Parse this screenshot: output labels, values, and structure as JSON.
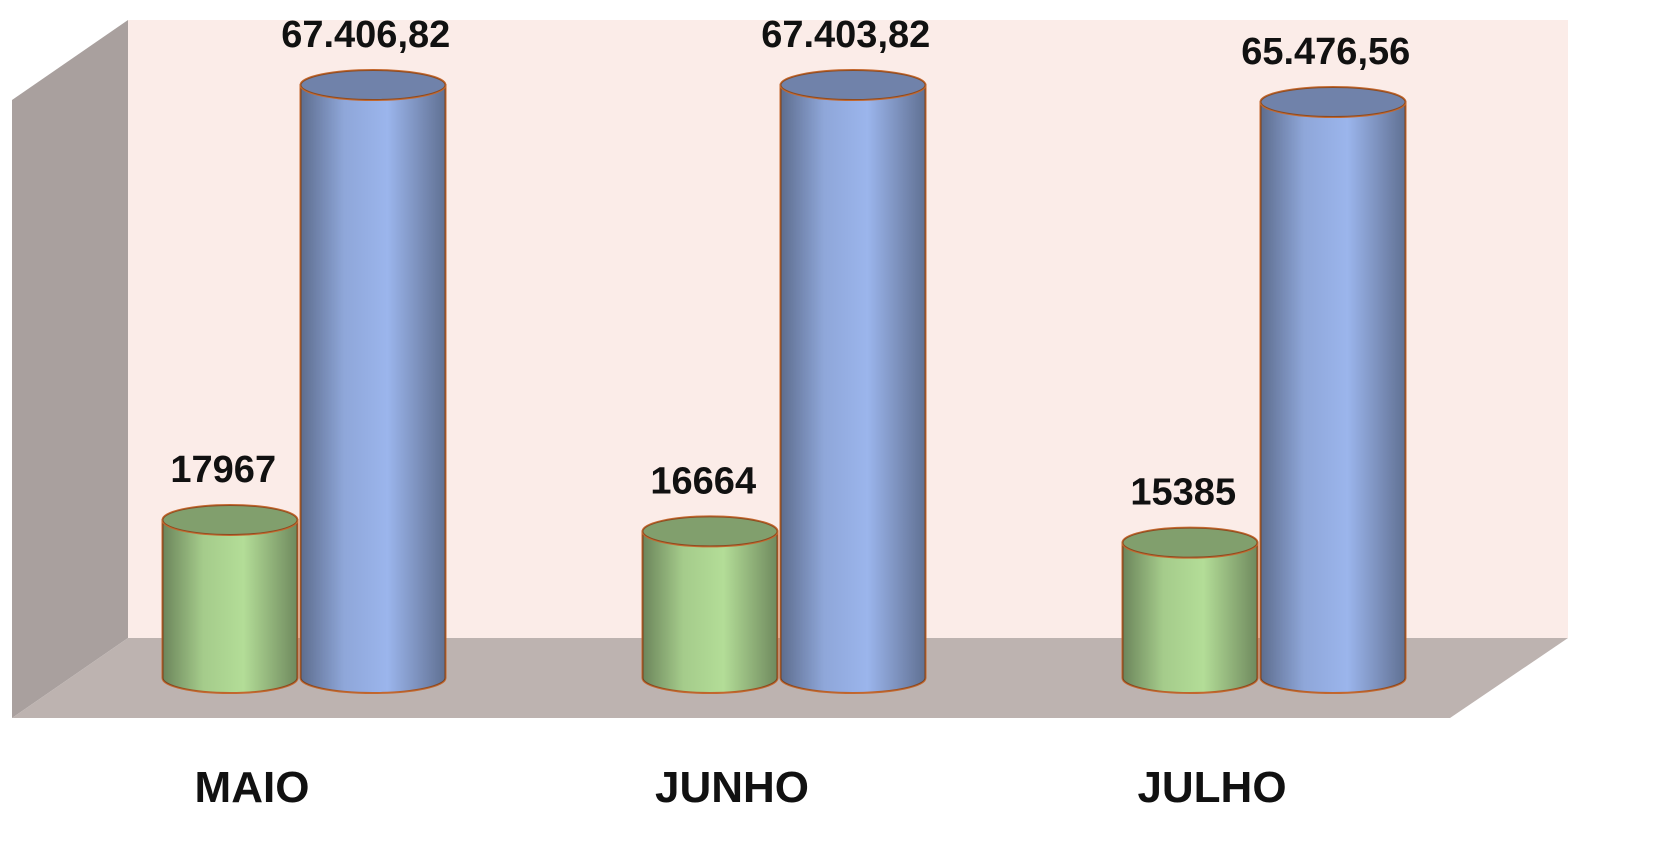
{
  "chart_data": {
    "type": "bar3d-cylinder",
    "categories": [
      "MAIO",
      "JUNHO",
      "JULHO"
    ],
    "series": [
      {
        "color": "#b3dd97",
        "values": [
          17967,
          16664,
          15385
        ]
      },
      {
        "color": "#9bb5ec",
        "values": [
          67406.82,
          67403.82,
          65476.56
        ],
        "value_labels": [
          "67.406,82",
          "67.403,82",
          "65.476,56"
        ]
      }
    ]
  }
}
